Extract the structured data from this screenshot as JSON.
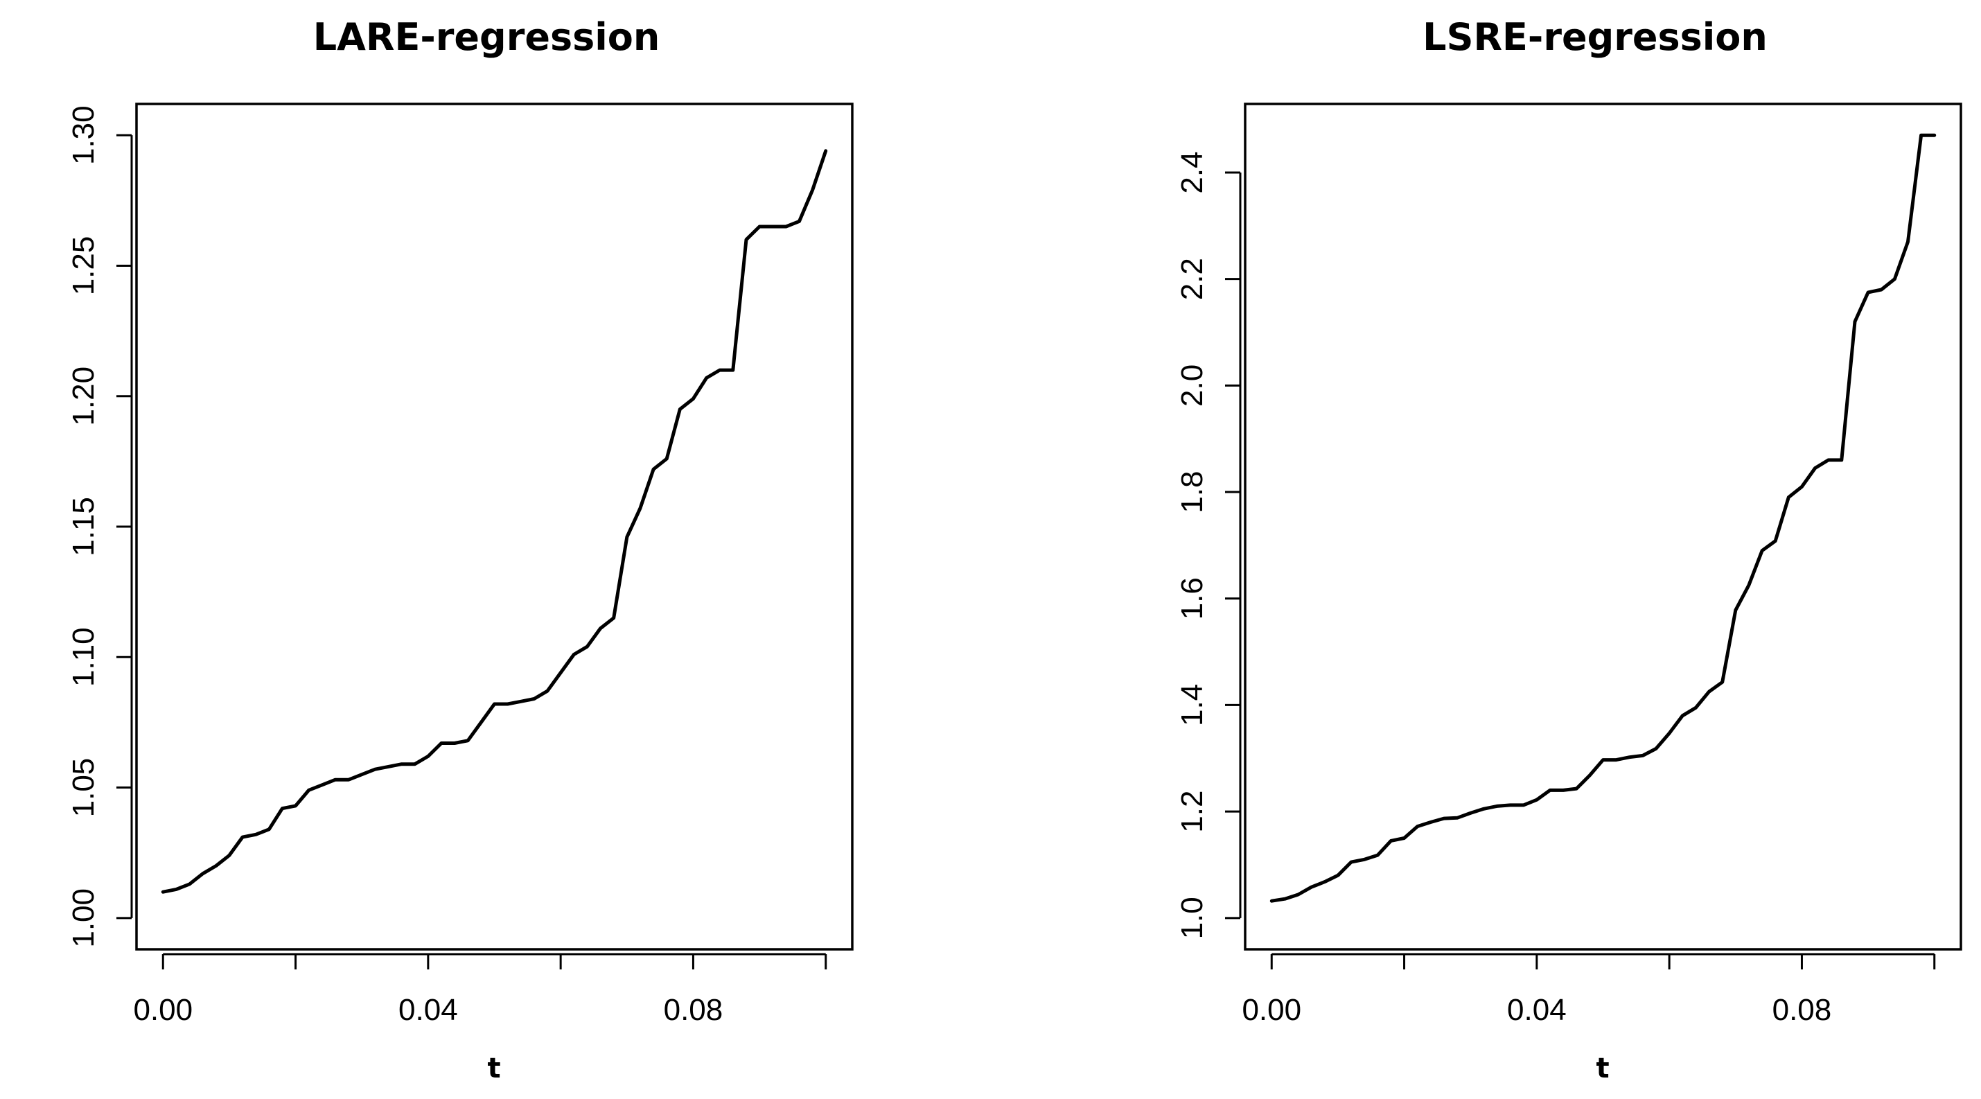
{
  "chart_data": [
    {
      "type": "line",
      "title": "LARE-regression",
      "xlabel": "t",
      "ylabel": "",
      "xlim": [
        0.0,
        0.1
      ],
      "ylim": [
        1.0,
        1.3
      ],
      "x_ticks": [
        "0.00",
        "0.04",
        "0.08"
      ],
      "x_tick_values": [
        0.0,
        0.02,
        0.04,
        0.06,
        0.08,
        0.1
      ],
      "y_ticks": [
        "1.00",
        "1.05",
        "1.10",
        "1.15",
        "1.20",
        "1.25",
        "1.30"
      ],
      "y_tick_values": [
        1.0,
        1.05,
        1.1,
        1.15,
        1.2,
        1.25,
        1.3
      ],
      "grid": false,
      "series": [
        {
          "x": [
            0.0,
            0.002,
            0.004,
            0.006,
            0.008,
            0.01,
            0.012,
            0.014,
            0.016,
            0.018,
            0.02,
            0.022,
            0.024,
            0.026,
            0.028,
            0.03,
            0.032,
            0.034,
            0.036,
            0.038,
            0.04,
            0.042,
            0.044,
            0.046,
            0.048,
            0.05,
            0.052,
            0.054,
            0.056,
            0.058,
            0.06,
            0.062,
            0.064,
            0.066,
            0.068,
            0.07,
            0.072,
            0.074,
            0.076,
            0.078,
            0.08,
            0.082,
            0.084,
            0.086,
            0.088,
            0.09,
            0.092,
            0.094,
            0.096,
            0.098,
            0.1
          ],
          "y": [
            1.01,
            1.011,
            1.013,
            1.017,
            1.02,
            1.024,
            1.031,
            1.032,
            1.034,
            1.042,
            1.043,
            1.049,
            1.051,
            1.053,
            1.053,
            1.055,
            1.057,
            1.058,
            1.059,
            1.059,
            1.062,
            1.067,
            1.067,
            1.068,
            1.075,
            1.082,
            1.082,
            1.083,
            1.084,
            1.087,
            1.094,
            1.101,
            1.104,
            1.111,
            1.115,
            1.146,
            1.157,
            1.172,
            1.176,
            1.195,
            1.199,
            1.207,
            1.21,
            1.21,
            1.26,
            1.265,
            1.265,
            1.265,
            1.267,
            1.279,
            1.294
          ]
        }
      ]
    },
    {
      "type": "line",
      "title": "LSRE-regression",
      "xlabel": "t",
      "ylabel": "",
      "xlim": [
        0.0,
        0.1
      ],
      "ylim": [
        1.0,
        2.47
      ],
      "x_ticks": [
        "0.00",
        "0.04",
        "0.08"
      ],
      "x_tick_values": [
        0.0,
        0.02,
        0.04,
        0.06,
        0.08,
        0.1
      ],
      "y_ticks": [
        "1.0",
        "1.2",
        "1.4",
        "1.6",
        "1.8",
        "2.0",
        "2.2",
        "2.4"
      ],
      "y_tick_values": [
        1.0,
        1.2,
        1.4,
        1.6,
        1.8,
        2.0,
        2.2,
        2.4
      ],
      "grid": false,
      "series": [
        {
          "x": [
            0.0,
            0.002,
            0.004,
            0.006,
            0.008,
            0.01,
            0.012,
            0.014,
            0.016,
            0.018,
            0.02,
            0.022,
            0.024,
            0.026,
            0.028,
            0.03,
            0.032,
            0.034,
            0.036,
            0.038,
            0.04,
            0.042,
            0.044,
            0.046,
            0.048,
            0.05,
            0.052,
            0.054,
            0.056,
            0.058,
            0.06,
            0.062,
            0.064,
            0.066,
            0.068,
            0.07,
            0.072,
            0.074,
            0.076,
            0.078,
            0.08,
            0.082,
            0.084,
            0.086,
            0.088,
            0.09,
            0.092,
            0.094,
            0.096,
            0.098,
            0.1
          ],
          "y": [
            1.032,
            1.036,
            1.044,
            1.058,
            1.068,
            1.08,
            1.105,
            1.11,
            1.118,
            1.145,
            1.15,
            1.172,
            1.18,
            1.187,
            1.188,
            1.197,
            1.205,
            1.21,
            1.212,
            1.212,
            1.222,
            1.24,
            1.24,
            1.243,
            1.268,
            1.297,
            1.297,
            1.302,
            1.305,
            1.318,
            1.347,
            1.38,
            1.395,
            1.425,
            1.443,
            1.578,
            1.625,
            1.69,
            1.708,
            1.79,
            1.81,
            1.845,
            1.86,
            1.86,
            2.12,
            2.175,
            2.18,
            2.2,
            2.27,
            2.47,
            2.47
          ]
        }
      ]
    }
  ]
}
